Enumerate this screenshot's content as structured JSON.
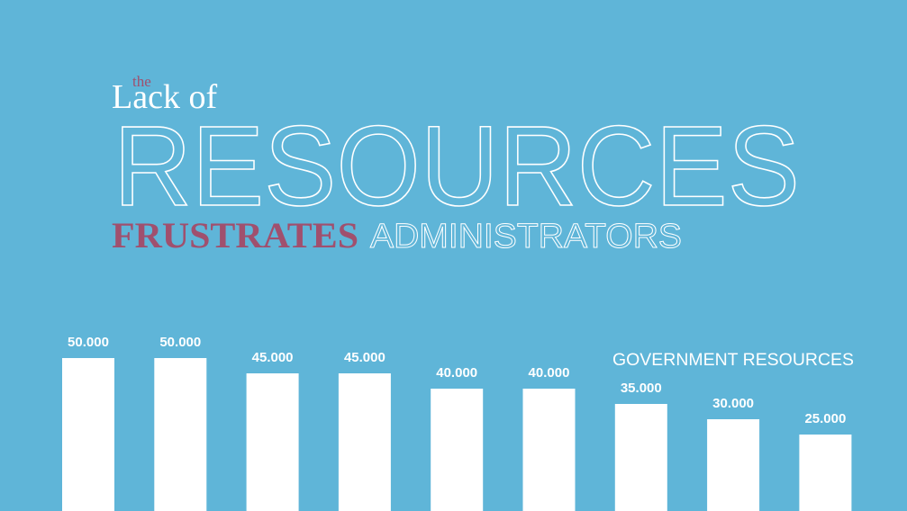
{
  "chart_data": {
    "type": "bar",
    "pretitle": "the",
    "title": "Lack of",
    "headline": "RESOURCES",
    "subtitle_emphasis": "FRUSTRATES",
    "subtitle": "ADMINISTRATORS",
    "label": "GOVERNMENT RESOURCES",
    "categories": [
      null,
      null,
      null,
      null,
      null,
      null,
      null,
      null,
      null
    ],
    "values": [
      50000,
      50000,
      45000,
      45000,
      40000,
      40000,
      35000,
      30000,
      25000
    ],
    "value_labels": [
      "50.000",
      "50.000",
      "45.000",
      "45.000",
      "40.000",
      "40.000",
      "35.000",
      "30.000",
      "25.000"
    ],
    "color": "#ffffff"
  }
}
